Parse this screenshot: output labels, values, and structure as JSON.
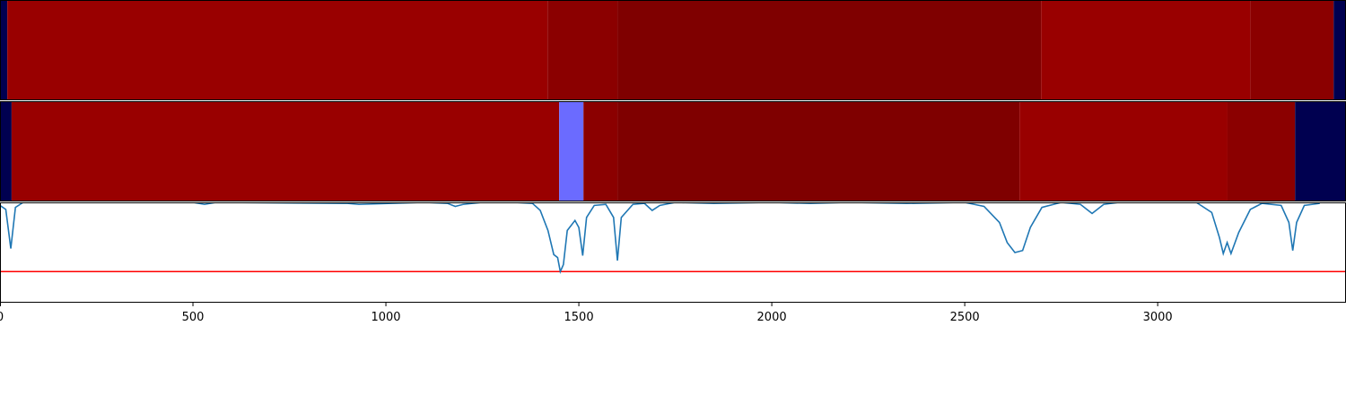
{
  "chart_data": [
    {
      "type": "segments",
      "xlim": [
        0,
        3488
      ],
      "segments": [
        {
          "start": 0,
          "end": 19,
          "color": "#000050"
        },
        {
          "start": 19,
          "end": 1419,
          "color": "#990000"
        },
        {
          "start": 1419,
          "end": 1600,
          "color": "#8b0000"
        },
        {
          "start": 1600,
          "end": 2698,
          "color": "#7f0000"
        },
        {
          "start": 2698,
          "end": 3240,
          "color": "#990000"
        },
        {
          "start": 3240,
          "end": 3456,
          "color": "#8b0000"
        },
        {
          "start": 3456,
          "end": 3488,
          "color": "#000050"
        }
      ]
    },
    {
      "type": "segments",
      "xlim": [
        0,
        3488
      ],
      "segments": [
        {
          "start": 0,
          "end": 30,
          "color": "#000050"
        },
        {
          "start": 30,
          "end": 1449,
          "color": "#990000"
        },
        {
          "start": 1449,
          "end": 1512,
          "color": "#6b6bff"
        },
        {
          "start": 1512,
          "end": 1600,
          "color": "#8b0000"
        },
        {
          "start": 1600,
          "end": 2642,
          "color": "#7f0000"
        },
        {
          "start": 2642,
          "end": 3181,
          "color": "#990000"
        },
        {
          "start": 3181,
          "end": 3356,
          "color": "#8b0000"
        },
        {
          "start": 3356,
          "end": 3488,
          "color": "#000050"
        }
      ]
    },
    {
      "type": "line",
      "xlim": [
        0,
        3488
      ],
      "ylim": [
        0,
        1
      ],
      "color": "#1f77b4",
      "xticks": [
        0,
        500,
        1000,
        1500,
        2000,
        2500,
        3000
      ],
      "threshold": 0.31,
      "threshold_color": "#ff0000",
      "x": [
        0,
        15,
        28,
        40,
        60,
        500,
        530,
        560,
        900,
        930,
        1100,
        1160,
        1180,
        1200,
        1250,
        1330,
        1380,
        1400,
        1420,
        1435,
        1445,
        1452,
        1460,
        1470,
        1490,
        1500,
        1510,
        1520,
        1540,
        1570,
        1590,
        1600,
        1610,
        1640,
        1670,
        1690,
        1710,
        1750,
        1850,
        2000,
        2100,
        2200,
        2350,
        2500,
        2550,
        2590,
        2610,
        2630,
        2650,
        2670,
        2700,
        2750,
        2800,
        2830,
        2860,
        2900,
        3100,
        3140,
        3160,
        3170,
        3180,
        3190,
        3210,
        3240,
        3270,
        3320,
        3340,
        3350,
        3360,
        3380,
        3420
      ],
      "values": [
        0.97,
        0.93,
        0.54,
        0.95,
        1.0,
        1.0,
        0.98,
        1.0,
        0.99,
        0.98,
        1.0,
        0.99,
        0.96,
        0.98,
        1.0,
        1.0,
        0.99,
        0.92,
        0.72,
        0.48,
        0.45,
        0.31,
        0.38,
        0.72,
        0.82,
        0.75,
        0.47,
        0.85,
        0.97,
        0.98,
        0.85,
        0.42,
        0.85,
        0.98,
        0.99,
        0.92,
        0.97,
        1.0,
        0.99,
        1.0,
        0.99,
        1.0,
        0.99,
        1.0,
        0.96,
        0.8,
        0.6,
        0.5,
        0.52,
        0.75,
        0.95,
        1.0,
        0.98,
        0.89,
        0.98,
        1.0,
        1.0,
        0.9,
        0.65,
        0.49,
        0.6,
        0.49,
        0.7,
        0.93,
        0.99,
        0.97,
        0.8,
        0.52,
        0.8,
        0.97,
        0.99
      ]
    }
  ]
}
